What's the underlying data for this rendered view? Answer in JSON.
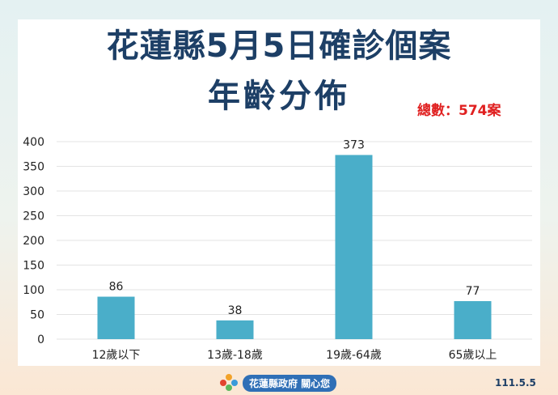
{
  "title_line1": "花蓮縣5月5日確診個案",
  "title_line2": "年齡分佈",
  "total_label": "總數：574案",
  "footer_text": "花蓮縣政府 關心您",
  "date_label": "111.5.5",
  "colors": {
    "bar": "#4aaec9",
    "title": "#1d3f66",
    "total": "#e02020",
    "grid": "#e3e3e3"
  },
  "chart_data": {
    "type": "bar",
    "categories": [
      "12歲以下",
      "13歲-18歲",
      "19歲-64歲",
      "65歲以上"
    ],
    "values": [
      86,
      38,
      373,
      77
    ],
    "title": "花蓮縣5月5日確診個案 年齡分佈",
    "xlabel": "",
    "ylabel": "",
    "ylim": [
      0,
      400
    ],
    "yticks": [
      0,
      50,
      100,
      150,
      200,
      250,
      300,
      350,
      400
    ],
    "grid": true,
    "data_labels": true
  }
}
